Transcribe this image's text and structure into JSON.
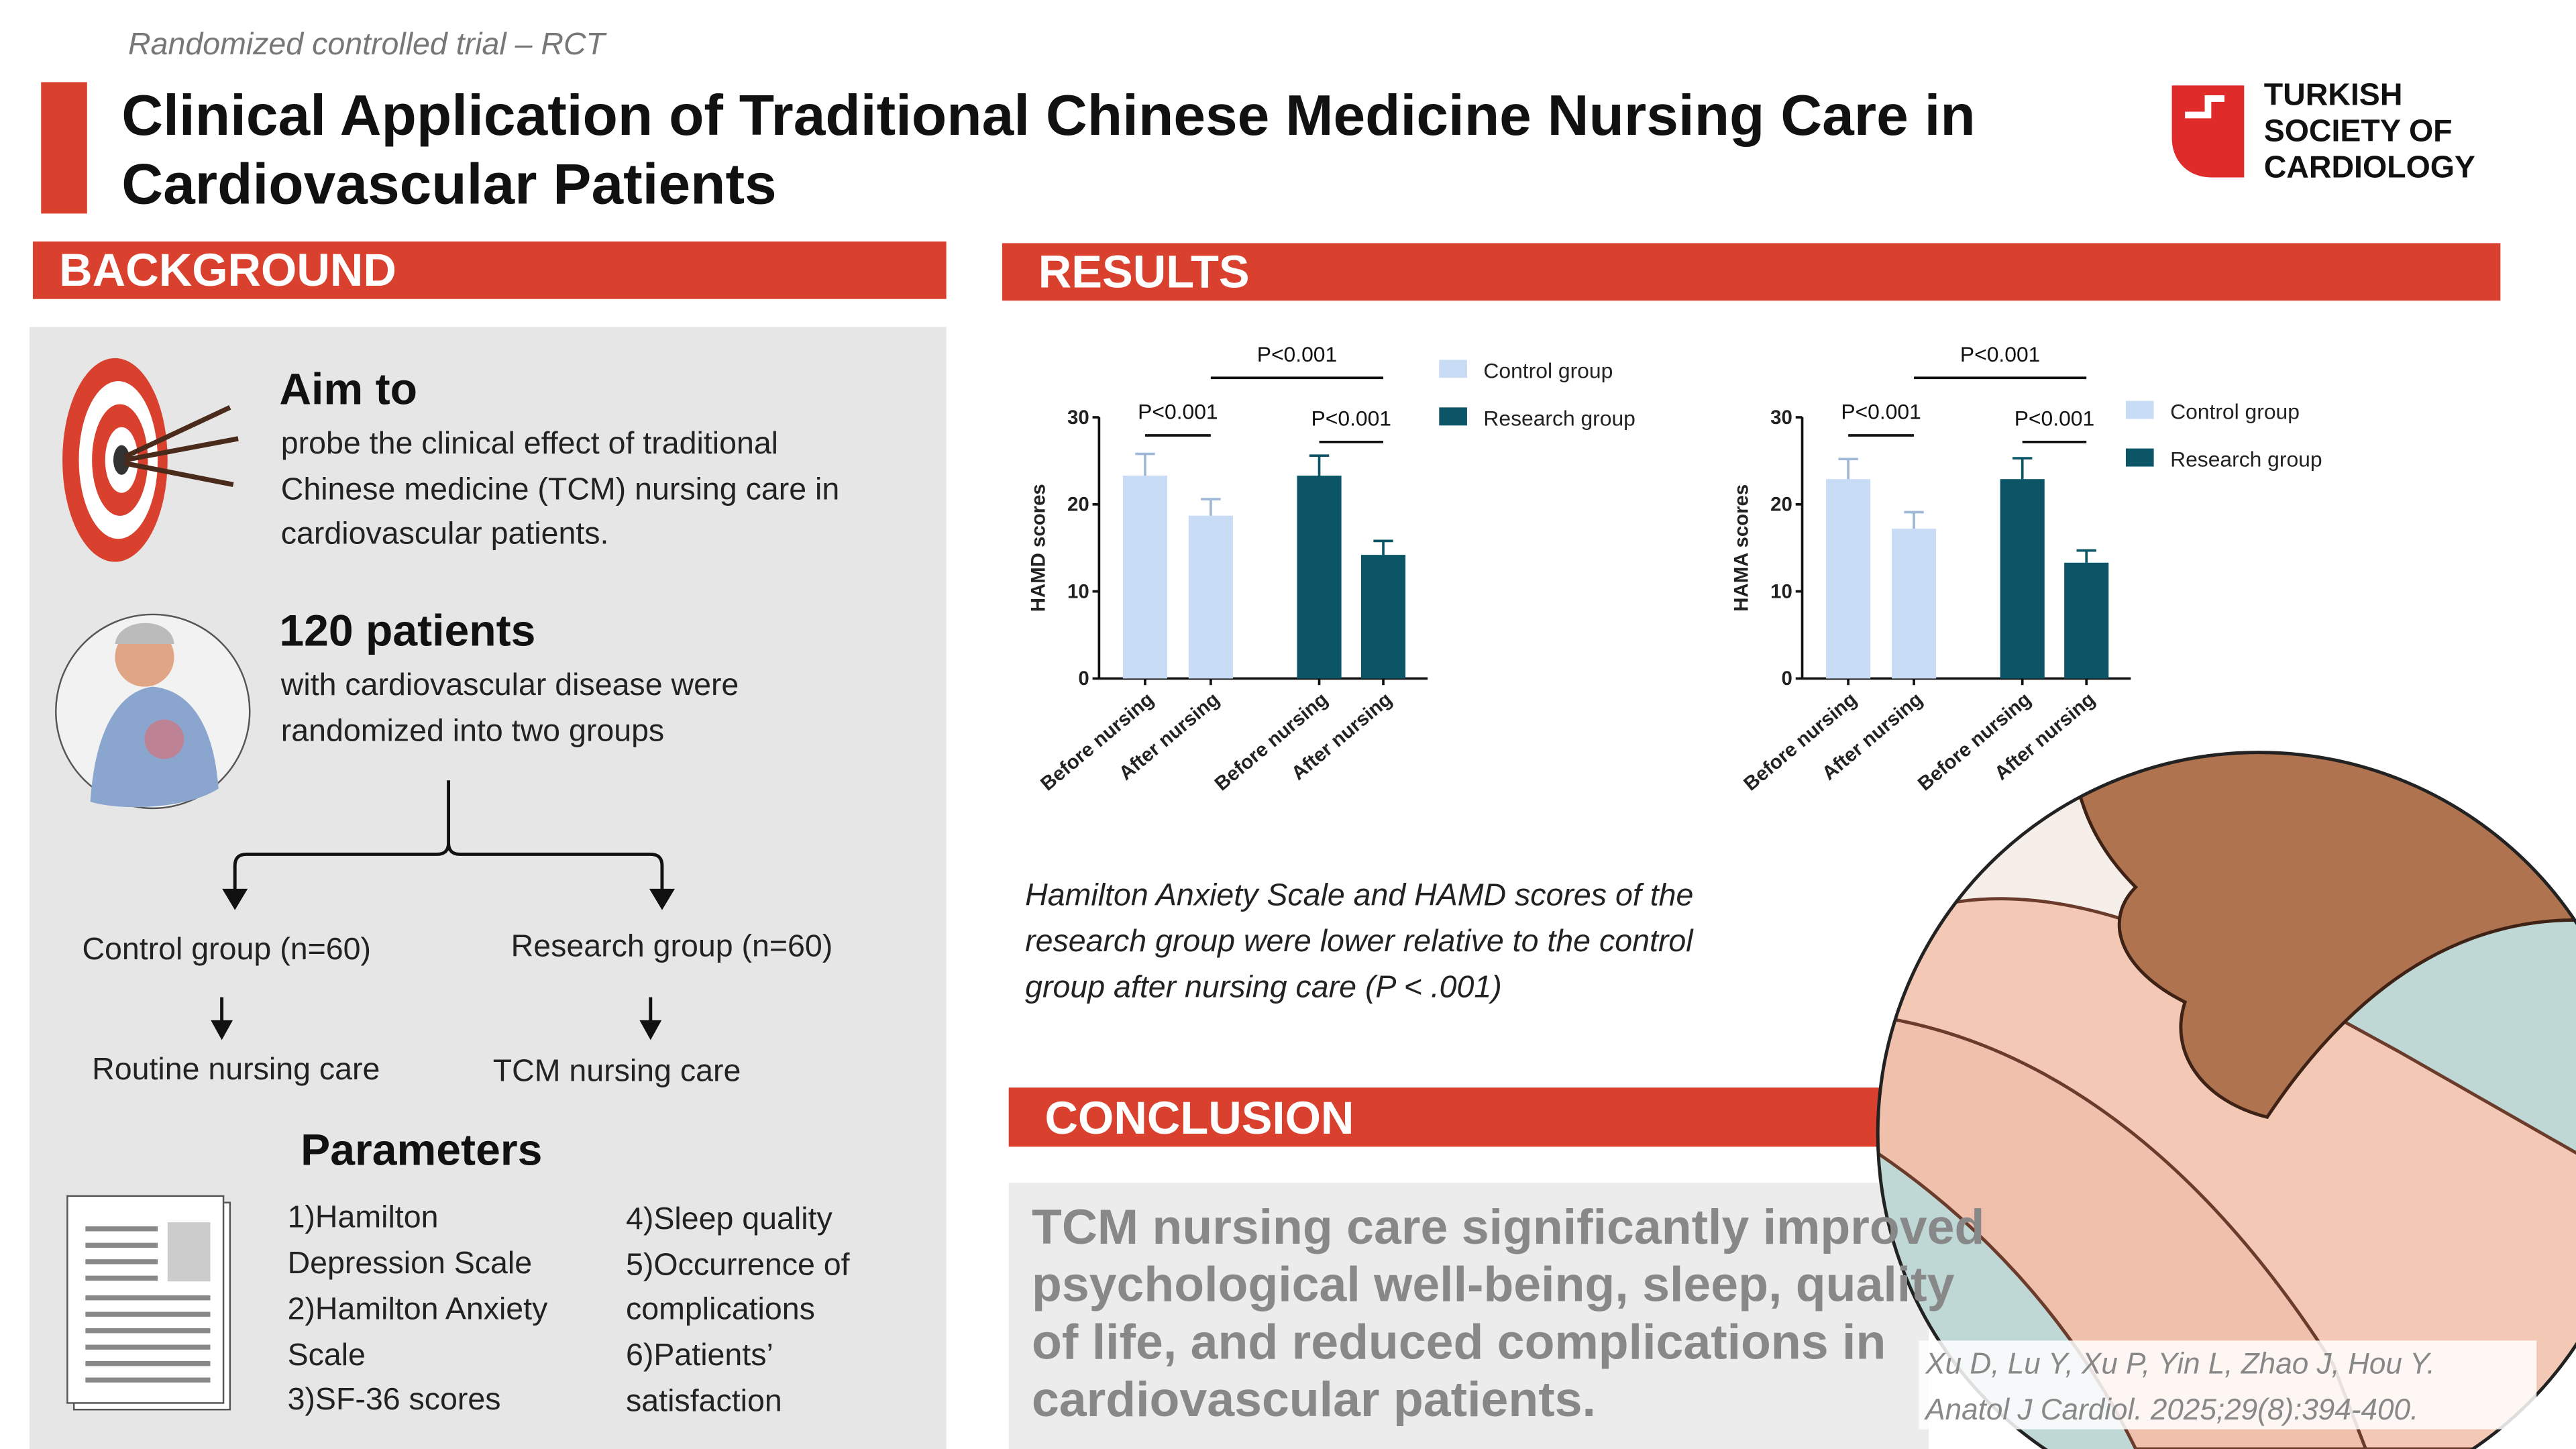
{
  "header": {
    "subtitle": "Randomized controlled trial – RCT",
    "title_lines": [
      "Clinical Application of Traditional Chinese Medicine Nursing Care in",
      "Cardiovascular Patients"
    ],
    "logo_lines": [
      "TURKISH",
      "SOCIETY OF",
      "CARDIOLOGY"
    ]
  },
  "background": {
    "heading": "BACKGROUND",
    "aim_title": "Aim to",
    "aim_lines": [
      "probe the clinical effect of traditional",
      "Chinese medicine (TCM) nursing care in",
      "cardiovascular patients."
    ],
    "patients_title": "120 patients",
    "patients_lines": [
      "with cardiovascular disease were",
      "randomized into two groups"
    ],
    "groups": [
      {
        "name": "Control group (n=60)",
        "care": "Routine nursing care"
      },
      {
        "name": "Research group (n=60)",
        "care": "TCM nursing care"
      }
    ],
    "parameters_title": "Parameters",
    "parameters_col1": [
      "1)Hamilton",
      "Depression Scale",
      "2)Hamilton Anxiety",
      "Scale",
      "3)SF-36 scores"
    ],
    "parameters_col2": [
      "4)Sleep quality",
      "5)Occurrence of",
      "complications",
      "6)Patients’",
      "satisfaction"
    ]
  },
  "results": {
    "heading": "RESULTS",
    "caption_lines": [
      "Hamilton Anxiety Scale and HAMD scores of the",
      "research group were lower relative to the control",
      "group after nursing care (P < .001)"
    ]
  },
  "chart_data": [
    {
      "type": "bar",
      "ylabel": "HAMD scores",
      "categories": [
        "Before nursing",
        "After nursing",
        "Before nursing",
        "After nursing"
      ],
      "series": [
        {
          "name": "Control group",
          "color": "#c9dcf5",
          "values": [
            23.3,
            18.7,
            null,
            null
          ],
          "errors": [
            2.5,
            1.9,
            null,
            null
          ]
        },
        {
          "name": "Research group",
          "color": "#0b5566",
          "values": [
            null,
            null,
            23.3,
            14.2
          ],
          "errors": [
            null,
            null,
            2.3,
            1.6
          ]
        }
      ],
      "ylim": [
        0,
        30
      ],
      "yticks": [
        0,
        10,
        20,
        30
      ],
      "annotations": [
        "P<0.001",
        "P<0.001",
        "P<0.001"
      ],
      "legend": "right"
    },
    {
      "type": "bar",
      "ylabel": "HAMA scores",
      "categories": [
        "Before nursing",
        "After nursing",
        "Before nursing",
        "After nursing"
      ],
      "series": [
        {
          "name": "Control group",
          "color": "#c9dcf5",
          "values": [
            22.9,
            17.2,
            null,
            null
          ],
          "errors": [
            2.3,
            1.9,
            null,
            null
          ]
        },
        {
          "name": "Research group",
          "color": "#0b5566",
          "values": [
            null,
            null,
            22.9,
            13.3
          ],
          "errors": [
            null,
            null,
            2.4,
            1.4
          ]
        }
      ],
      "ylim": [
        0,
        30
      ],
      "yticks": [
        0,
        10,
        20,
        30
      ],
      "annotations": [
        "P<0.001",
        "P<0.001",
        "P<0.001"
      ],
      "legend": "right"
    }
  ],
  "conclusion": {
    "heading": "CONCLUSION",
    "lines": [
      "TCM nursing care significantly improved",
      "psychological well-being, sleep, quality",
      "of life, and reduced complications in",
      "cardiovascular patients."
    ]
  },
  "citation": {
    "lines": [
      "Xu D, Lu Y, Xu P, Yin L, Zhao J, Hou Y.",
      "Anatol J Cardiol. 2025;29(8):394-400."
    ]
  }
}
